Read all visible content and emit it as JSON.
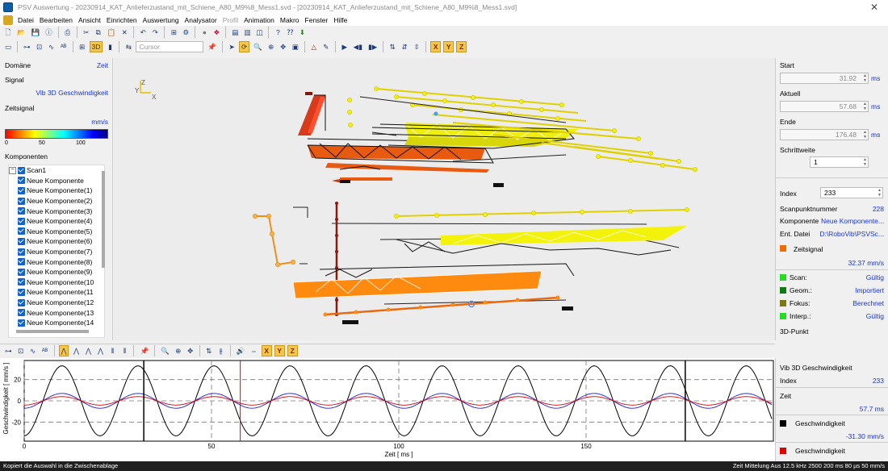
{
  "window": {
    "title": "PSV Auswertung - 20230914_KAT_Anlieferzustand_mit_Schiene_A80_M9%8_Mess1.svd - [20230914_KAT_Anlieferzustand_mit_Schiene_A80_M9%8_Mess1.svd]"
  },
  "menu": [
    "Datei",
    "Bearbeiten",
    "Ansicht",
    "Einrichten",
    "Auswertung",
    "Analysator",
    "Profil",
    "Animation",
    "Makro",
    "Fenster",
    "Hilfe"
  ],
  "toolbar": {
    "view_3d_label": "3D",
    "cursor_placeholder": "Cursor",
    "axis_x": "X",
    "axis_y": "Y",
    "axis_z": "Z"
  },
  "left_panel": {
    "domain_label": "Domäne",
    "domain_value": "Zeit",
    "signal_label": "Signal",
    "signal_value": "Vib 3D Geschwindigkeit",
    "timesignal_label": "Zeitsignal",
    "colorbar_unit": "mm/s",
    "colorbar_ticks": [
      "0",
      "50",
      "100"
    ],
    "components_label": "Komponenten",
    "tree_root": "Scan1",
    "components": [
      "Neue Komponente",
      "Neue Komponente(1)",
      "Neue Komponente(2)",
      "Neue Komponente(3)",
      "Neue Komponente(4)",
      "Neue Komponente(5)",
      "Neue Komponente(6)",
      "Neue Komponente(7)",
      "Neue Komponente(8)",
      "Neue Komponente(9)",
      "Neue Komponente(10",
      "Neue Komponente(11",
      "Neue Komponente(12",
      "Neue Komponente(13",
      "Neue Komponente(14"
    ]
  },
  "view3d": {
    "axis_z": "Z",
    "axis_y": "Y",
    "axis_x": "X"
  },
  "right_panel": {
    "start_label": "Start",
    "start_value": "31.92",
    "start_unit": "ms",
    "aktuell_label": "Aktuell",
    "aktuell_value": "57.68",
    "aktuell_unit": "ms",
    "ende_label": "Ende",
    "ende_value": "176.48",
    "ende_unit": "ms",
    "schrittweite_label": "Schrittweite",
    "schrittweite_value": "1",
    "index_label": "Index",
    "index_value": "233",
    "scanpunkt_label": "Scanpunktnummer",
    "scanpunkt_value": "228",
    "komponente_label": "Komponente",
    "komponente_value": "Neue Komponente...",
    "datei_label": "Ent. Datei",
    "datei_value": "D:\\RoboVib\\PSVSc...",
    "zeitsignal_label": "Zeitsignal",
    "zeitsignal_value": "32.37 mm/s",
    "zeitsignal_color": "#ef6c00",
    "status": [
      {
        "label": "Scan:",
        "value": "Gültig",
        "color": "#22dd22"
      },
      {
        "label": "Geom.:",
        "value": "Importiert",
        "color": "#117a11"
      },
      {
        "label": "Fokus:",
        "value": "Berechnet",
        "color": "#7a7a10"
      },
      {
        "label": "Interp.:",
        "value": "Gültig",
        "color": "#22dd22"
      }
    ],
    "punkt3d_label": "3D-Punkt"
  },
  "chart_panel": {
    "title": "Vib 3D Geschwindigkeit",
    "index_label": "Index",
    "index_value": "233",
    "zeit_label": "Zeit",
    "zeit_value": "57.7 ms",
    "series1_label": "Geschwindigkeit",
    "series1_value": "-31.30 mm/s",
    "series1_color": "#000000",
    "series2_label": "Geschwindigkeit",
    "series2_color": "#e00000"
  },
  "chart_data": {
    "type": "line",
    "xlabel": "Zeit [ ms ]",
    "ylabel": "Geschwindigkeit [ mm/s ]",
    "xlim": [
      0,
      200
    ],
    "ylim": [
      -38,
      38
    ],
    "x_ticks": [
      0,
      50,
      100,
      150
    ],
    "y_ticks": [
      20,
      0,
      -20
    ],
    "cursor_lines": [
      31.92,
      57.68,
      176.48
    ],
    "period_ms": 20.3,
    "series": [
      {
        "color": "#000000",
        "amplitude": 33,
        "phase_ms": 5
      },
      {
        "color": "#1a1ae6",
        "amplitude": 7,
        "phase_ms": 5
      },
      {
        "color": "#e00000",
        "amplitude": 4,
        "phase_ms": 5
      }
    ]
  },
  "status_bar": {
    "left_text": "Kopiert die Auswahl in die Zwischenablage",
    "right_text": "Zeit  Mittelung Aus   12.5 kHz  2500   200 ms  80 µs  50 mm/s"
  }
}
